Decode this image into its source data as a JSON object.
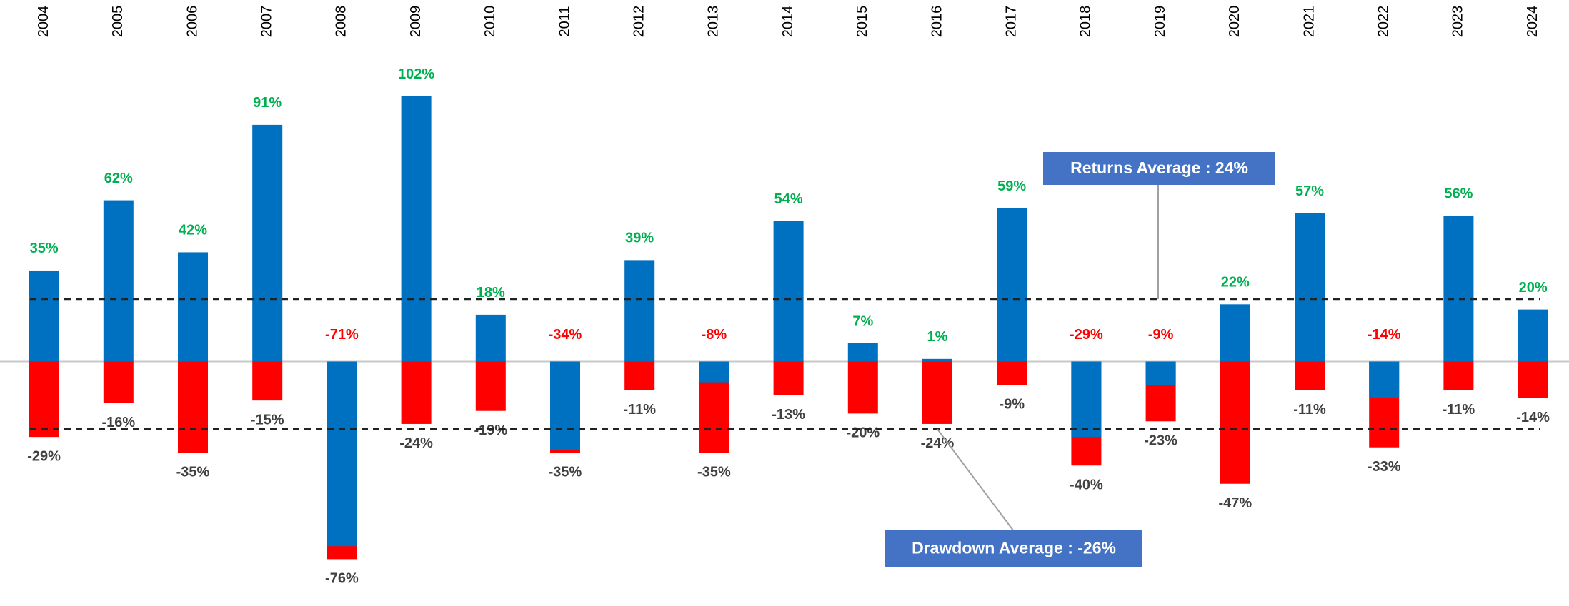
{
  "chart_data": {
    "type": "bar",
    "categories": [
      "2004",
      "2005",
      "2006",
      "2007",
      "2008",
      "2009",
      "2010",
      "2011",
      "2012",
      "2013",
      "2014",
      "2015",
      "2016",
      "2017",
      "2018",
      "2019",
      "2020",
      "2021",
      "2022",
      "2023",
      "2024"
    ],
    "series": [
      {
        "color": "#0070c0",
        "values": [
          35,
          62,
          42,
          91,
          -71,
          102,
          18,
          -34,
          39,
          -8,
          54,
          7,
          1,
          59,
          -29,
          -9,
          22,
          57,
          -14,
          56,
          20
        ],
        "value_labels": [
          "35%",
          "62%",
          "42%",
          "91%",
          "-71%",
          "102%",
          "18%",
          "-34%",
          "39%",
          "-8%",
          "54%",
          "7%",
          "1%",
          "59%",
          "-29%",
          "-9%",
          "22%",
          "57%",
          "-14%",
          "56%",
          "20%"
        ]
      },
      {
        "color": "#ff0000",
        "values": [
          -29,
          -16,
          -35,
          -15,
          -76,
          -24,
          -19,
          -35,
          -11,
          -35,
          -13,
          -20,
          -24,
          -9,
          -40,
          -23,
          -47,
          -11,
          -33,
          -11,
          -14
        ],
        "value_labels": [
          "-29%",
          "-16%",
          "-35%",
          "-15%",
          "-76%",
          "-24%",
          "-19%",
          "-35%",
          "-11%",
          "-35%",
          "-13%",
          "-20%",
          "-24%",
          "-9%",
          "-40%",
          "-23%",
          "-47%",
          "-11%",
          "-33%",
          "-11%",
          "-14%"
        ]
      }
    ],
    "positive_label_color": "#00b050",
    "negative_label_color": "#ff0000",
    "drawdown_label_color": "#404040",
    "reference_lines": [
      {
        "label": "Returns Average : 24%",
        "value": 24
      },
      {
        "label": "Drawdown Average : -26%",
        "value": -26
      }
    ],
    "ylim": [
      -94,
      139
    ]
  }
}
